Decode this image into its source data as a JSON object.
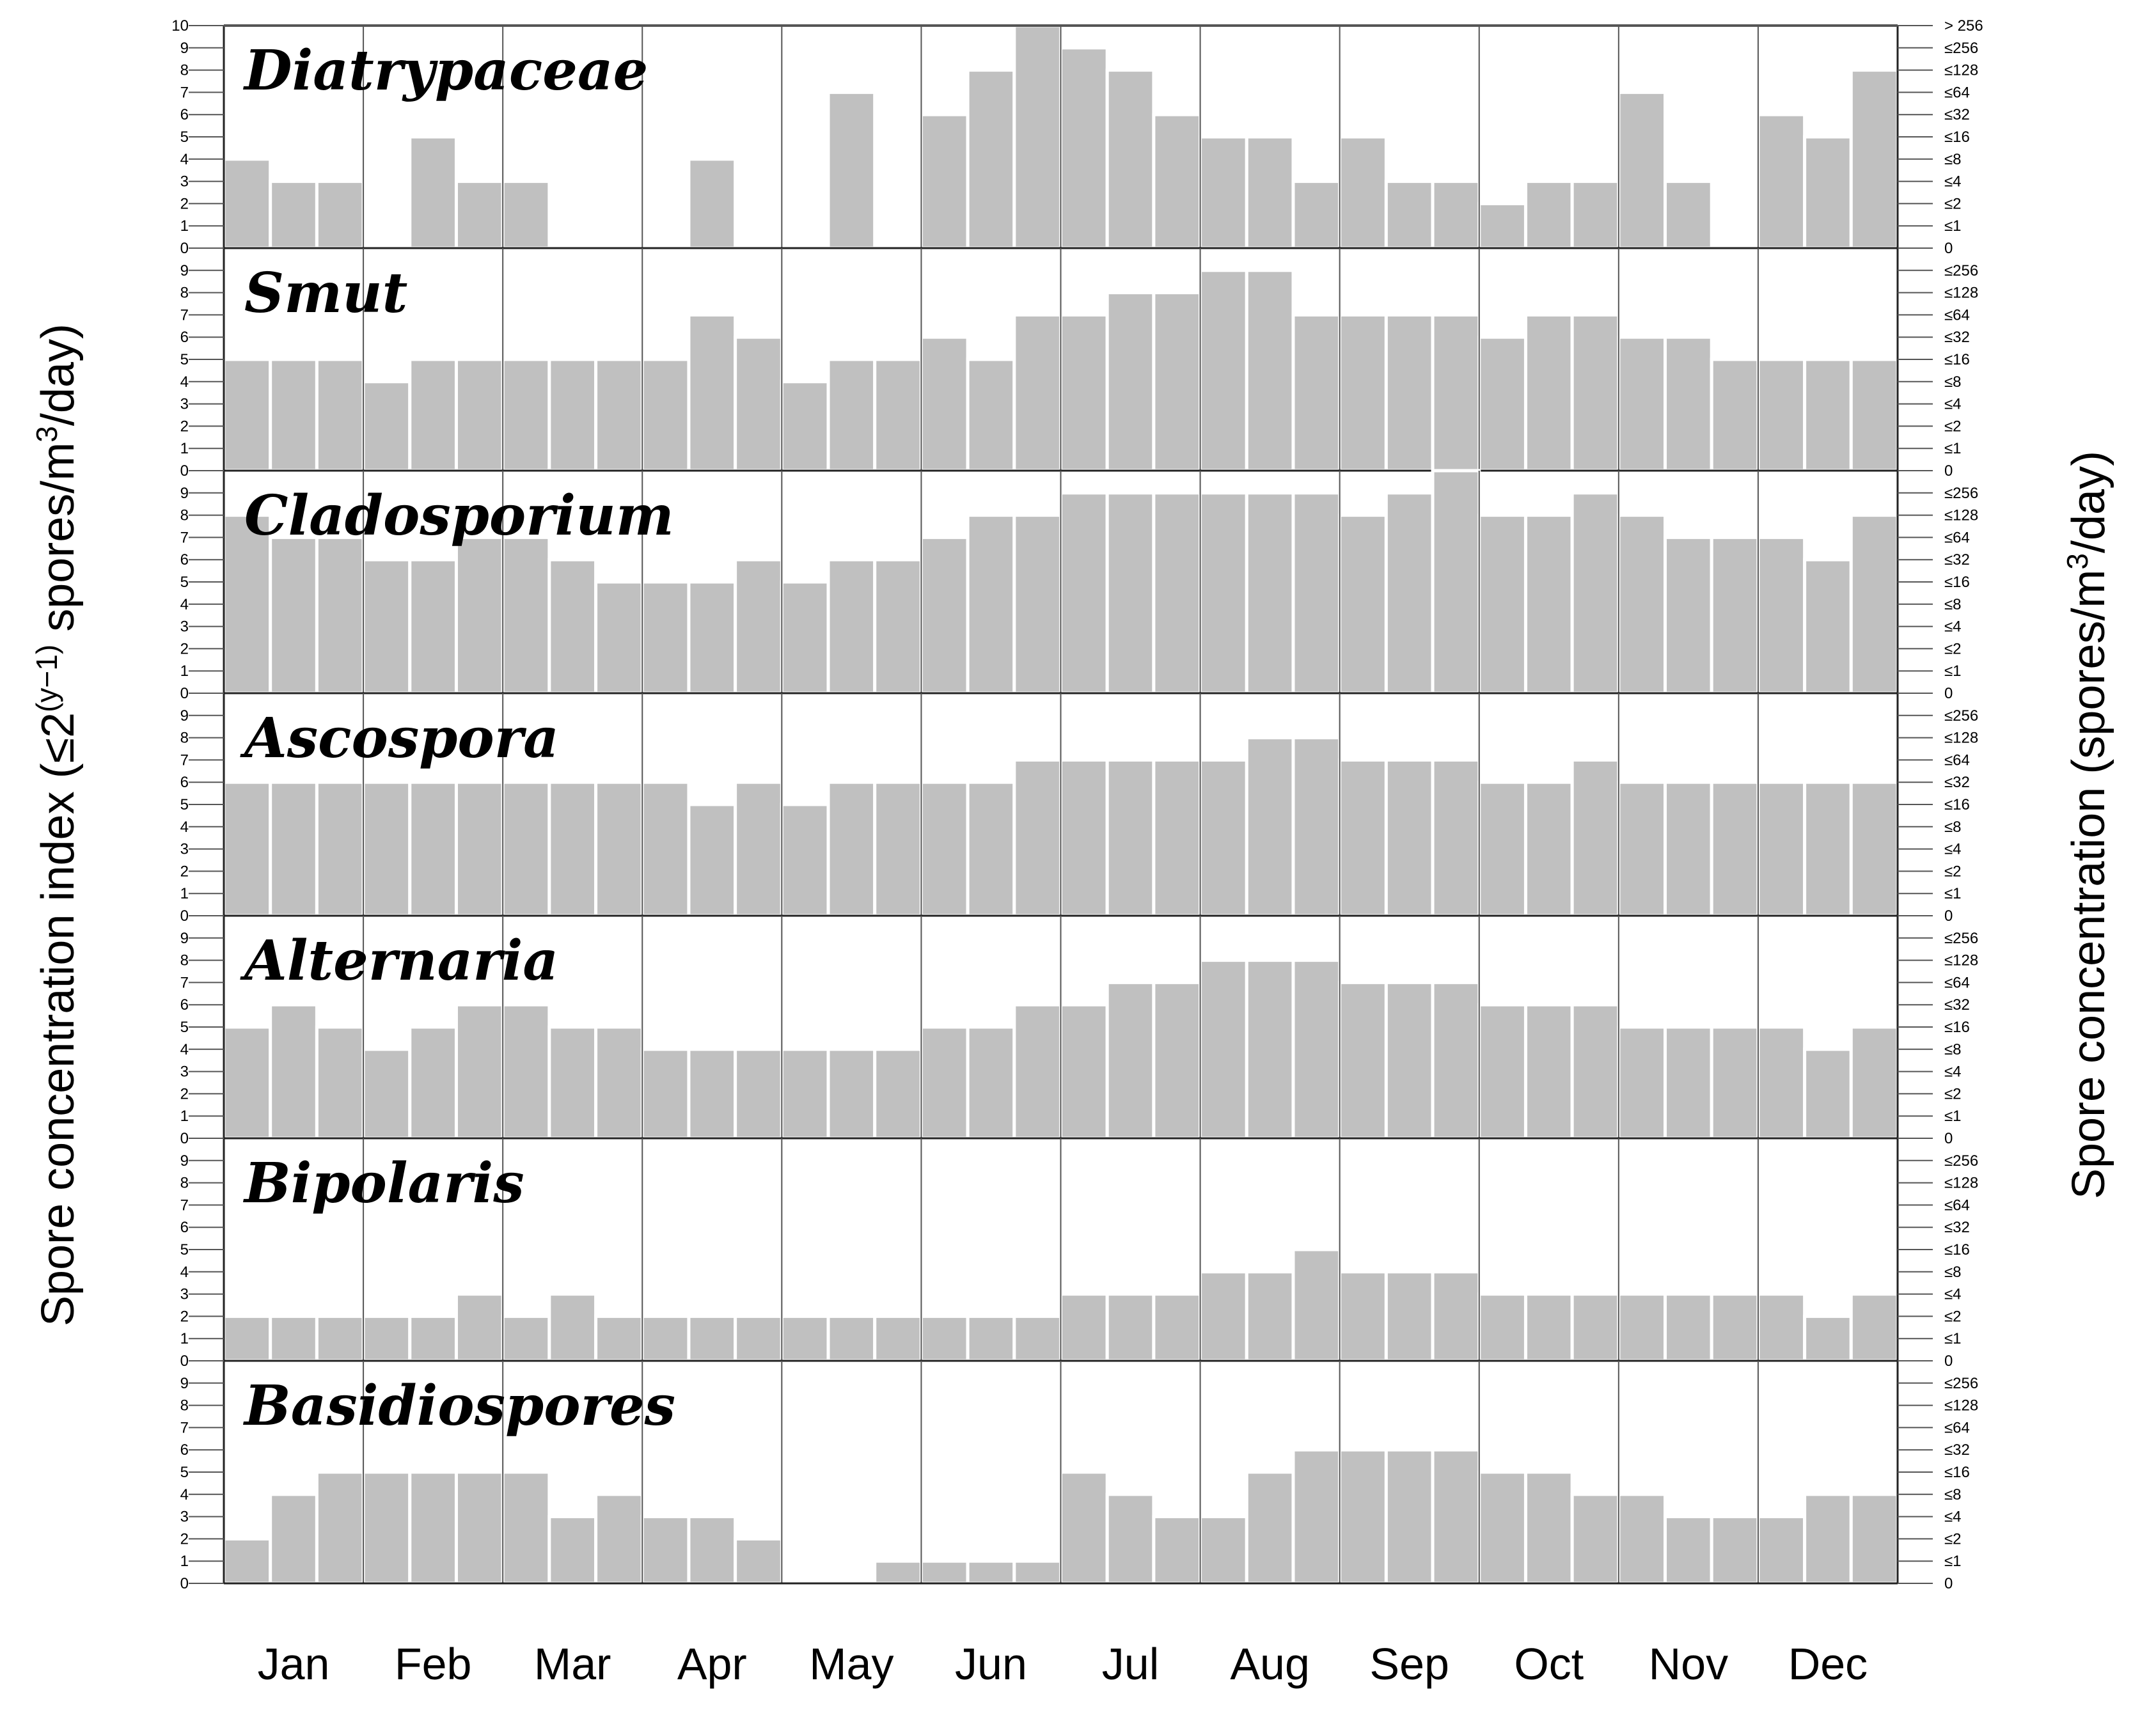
{
  "chart_data": {
    "type": "bar",
    "y_axis_title": "Spore concentration index (≤2",
    "y_axis_title_sup": "(y−1)",
    "y_axis_title_tail": " spores/m",
    "y_axis_title_sup2": "3",
    "y_axis_title_end": "/day)",
    "right_axis_title": "Spore concentration (spores/m",
    "right_axis_title_sup": "3",
    "right_axis_title_end": "/day)",
    "ylim": [
      0,
      10
    ],
    "left_ticks": [
      "0",
      "1",
      "2",
      "3",
      "4",
      "5",
      "6",
      "7",
      "8",
      "9",
      "10"
    ],
    "right_ticks": [
      "0",
      "≤1",
      "≤2",
      "≤4",
      "≤8",
      "≤16",
      "≤32",
      "≤64",
      "≤128",
      "≤256",
      "> 256"
    ],
    "months": [
      "Jan",
      "Feb",
      "Mar",
      "Apr",
      "May",
      "Jun",
      "Jul",
      "Aug",
      "Sep",
      "Oct",
      "Nov",
      "Dec"
    ],
    "bars_per_month": 3,
    "bar_color": "#c0c0c0",
    "series": [
      {
        "name": "Diatrypaceae",
        "values": [
          4,
          3,
          3,
          0,
          5,
          3,
          3,
          0,
          0,
          0,
          4,
          0,
          0,
          7,
          0,
          6,
          8,
          10,
          9,
          8,
          6,
          5,
          5,
          3,
          5,
          3,
          3,
          2,
          3,
          3,
          7,
          3,
          0,
          6,
          5,
          8
        ]
      },
      {
        "name": "Smut",
        "values": [
          5,
          5,
          5,
          4,
          5,
          5,
          5,
          5,
          5,
          5,
          7,
          6,
          4,
          5,
          5,
          6,
          5,
          7,
          7,
          8,
          8,
          9,
          9,
          7,
          7,
          7,
          7,
          6,
          7,
          7,
          6,
          6,
          5,
          5,
          5,
          5
        ]
      },
      {
        "name": "Cladosporium",
        "values": [
          8,
          7,
          7,
          6,
          6,
          7,
          7,
          6,
          5,
          5,
          5,
          6,
          5,
          6,
          6,
          7,
          8,
          8,
          9,
          9,
          9,
          9,
          9,
          9,
          8,
          9,
          10,
          8,
          8,
          9,
          8,
          7,
          7,
          7,
          6,
          8
        ]
      },
      {
        "name": "Ascospora",
        "values": [
          6,
          6,
          6,
          6,
          6,
          6,
          6,
          6,
          6,
          6,
          5,
          6,
          5,
          6,
          6,
          6,
          6,
          7,
          7,
          7,
          7,
          7,
          8,
          8,
          7,
          7,
          7,
          6,
          6,
          7,
          6,
          6,
          6,
          6,
          6,
          6
        ]
      },
      {
        "name": "Alternaria",
        "values": [
          5,
          6,
          5,
          4,
          5,
          6,
          6,
          5,
          5,
          4,
          4,
          4,
          4,
          4,
          4,
          5,
          5,
          6,
          6,
          7,
          7,
          8,
          8,
          8,
          7,
          7,
          7,
          6,
          6,
          6,
          5,
          5,
          5,
          5,
          4,
          5
        ]
      },
      {
        "name": "Bipolaris",
        "values": [
          2,
          2,
          2,
          2,
          2,
          3,
          2,
          3,
          2,
          2,
          2,
          2,
          2,
          2,
          2,
          2,
          2,
          2,
          3,
          3,
          3,
          4,
          4,
          5,
          4,
          4,
          4,
          3,
          3,
          3,
          3,
          3,
          3,
          3,
          2,
          3
        ]
      },
      {
        "name": "Basidiospores",
        "values": [
          2,
          4,
          5,
          5,
          5,
          5,
          5,
          3,
          4,
          3,
          3,
          2,
          0,
          0,
          1,
          1,
          1,
          1,
          5,
          4,
          3,
          3,
          5,
          6,
          6,
          6,
          6,
          5,
          5,
          4,
          4,
          3,
          3,
          3,
          4,
          4
        ]
      }
    ]
  }
}
